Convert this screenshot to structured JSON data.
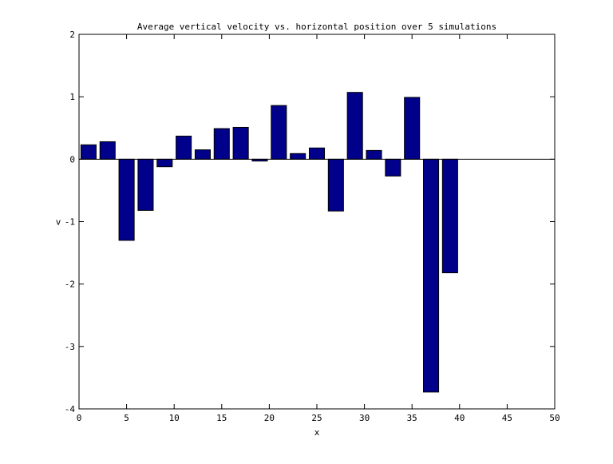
{
  "chart_data": {
    "type": "bar",
    "title": "Average vertical velocity vs. horizontal position over 5 simulations",
    "xlabel": "x",
    "ylabel": "v",
    "xlim": [
      0,
      50
    ],
    "ylim": [
      -4,
      2
    ],
    "xticks": [
      0,
      5,
      10,
      15,
      20,
      25,
      30,
      35,
      40,
      45,
      50
    ],
    "yticks": [
      -4,
      -3,
      -2,
      -1,
      0,
      1,
      2
    ],
    "bar_width": 1.6,
    "grid": false,
    "bar_color": "#00008b",
    "x": [
      1,
      3,
      5,
      7,
      9,
      11,
      13,
      15,
      17,
      19,
      21,
      23,
      25,
      27,
      29,
      31,
      33,
      35,
      37,
      39
    ],
    "values": [
      0.23,
      0.28,
      -1.3,
      -0.82,
      -0.12,
      0.37,
      0.15,
      0.49,
      0.51,
      -0.03,
      0.86,
      0.09,
      0.18,
      -0.83,
      1.07,
      0.14,
      -0.27,
      0.99,
      -3.73,
      -1.82
    ]
  }
}
